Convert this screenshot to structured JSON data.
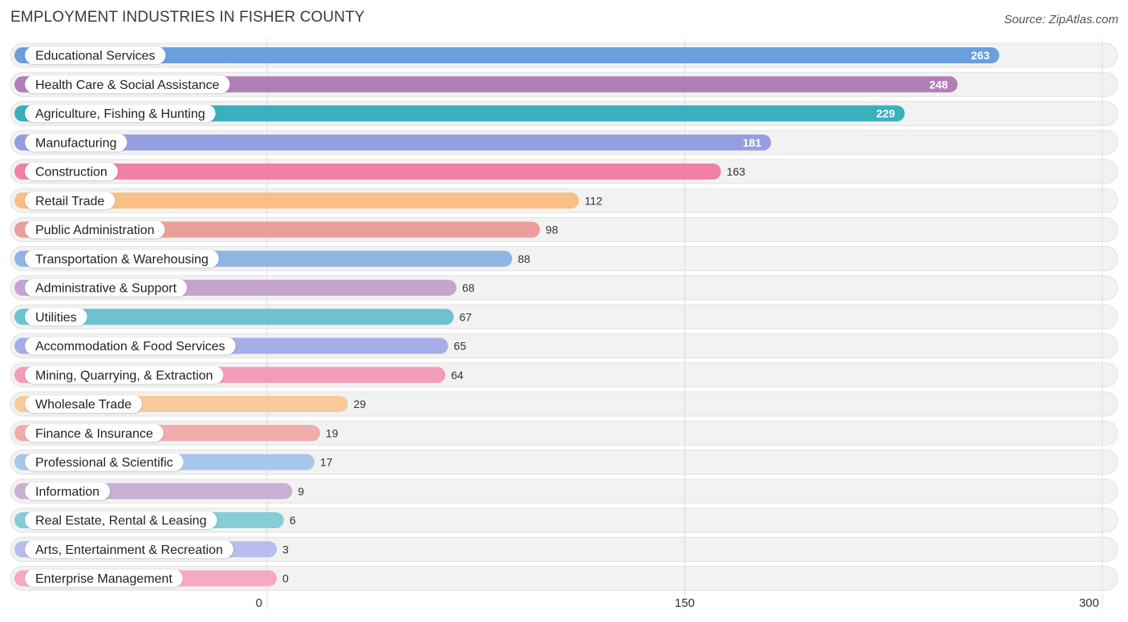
{
  "chart_data": {
    "type": "bar",
    "orientation": "horizontal",
    "title": "EMPLOYMENT INDUSTRIES IN FISHER COUNTY",
    "source": "Source: ZipAtlas.com",
    "xlim": [
      0,
      300
    ],
    "ticks": [
      {
        "value": 0,
        "label": "0"
      },
      {
        "value": 150,
        "label": "150"
      },
      {
        "value": 300,
        "label": "300"
      }
    ],
    "categories": [
      "Educational Services",
      "Health Care & Social Assistance",
      "Agriculture, Fishing & Hunting",
      "Manufacturing",
      "Construction",
      "Retail Trade",
      "Public Administration",
      "Transportation & Warehousing",
      "Administrative & Support",
      "Utilities",
      "Accommodation & Food Services",
      "Mining, Quarrying, & Extraction",
      "Wholesale Trade",
      "Finance & Insurance",
      "Professional & Scientific",
      "Information",
      "Real Estate, Rental & Leasing",
      "Arts, Entertainment & Recreation",
      "Enterprise Management"
    ],
    "values": [
      263,
      248,
      229,
      181,
      163,
      112,
      98,
      88,
      68,
      67,
      65,
      64,
      29,
      19,
      17,
      9,
      6,
      3,
      0
    ],
    "value_labels": [
      "263",
      "248",
      "229",
      "181",
      "163",
      "112",
      "98",
      "88",
      "68",
      "67",
      "65",
      "64",
      "29",
      "19",
      "17",
      "9",
      "6",
      "3",
      "0"
    ],
    "colors": [
      "#6a9fdc",
      "#b07fb8",
      "#3aafbd",
      "#949fe3",
      "#f27fa6",
      "#f8bf86",
      "#ec9e9b",
      "#8fb5e3",
      "#c5a5cd",
      "#6cc3cf",
      "#a6aee8",
      "#f39cba",
      "#f9c99c",
      "#f0adab",
      "#a9c6ec",
      "#c9b1d4",
      "#86cdd5",
      "#b7bdec",
      "#f6a9c4"
    ]
  }
}
